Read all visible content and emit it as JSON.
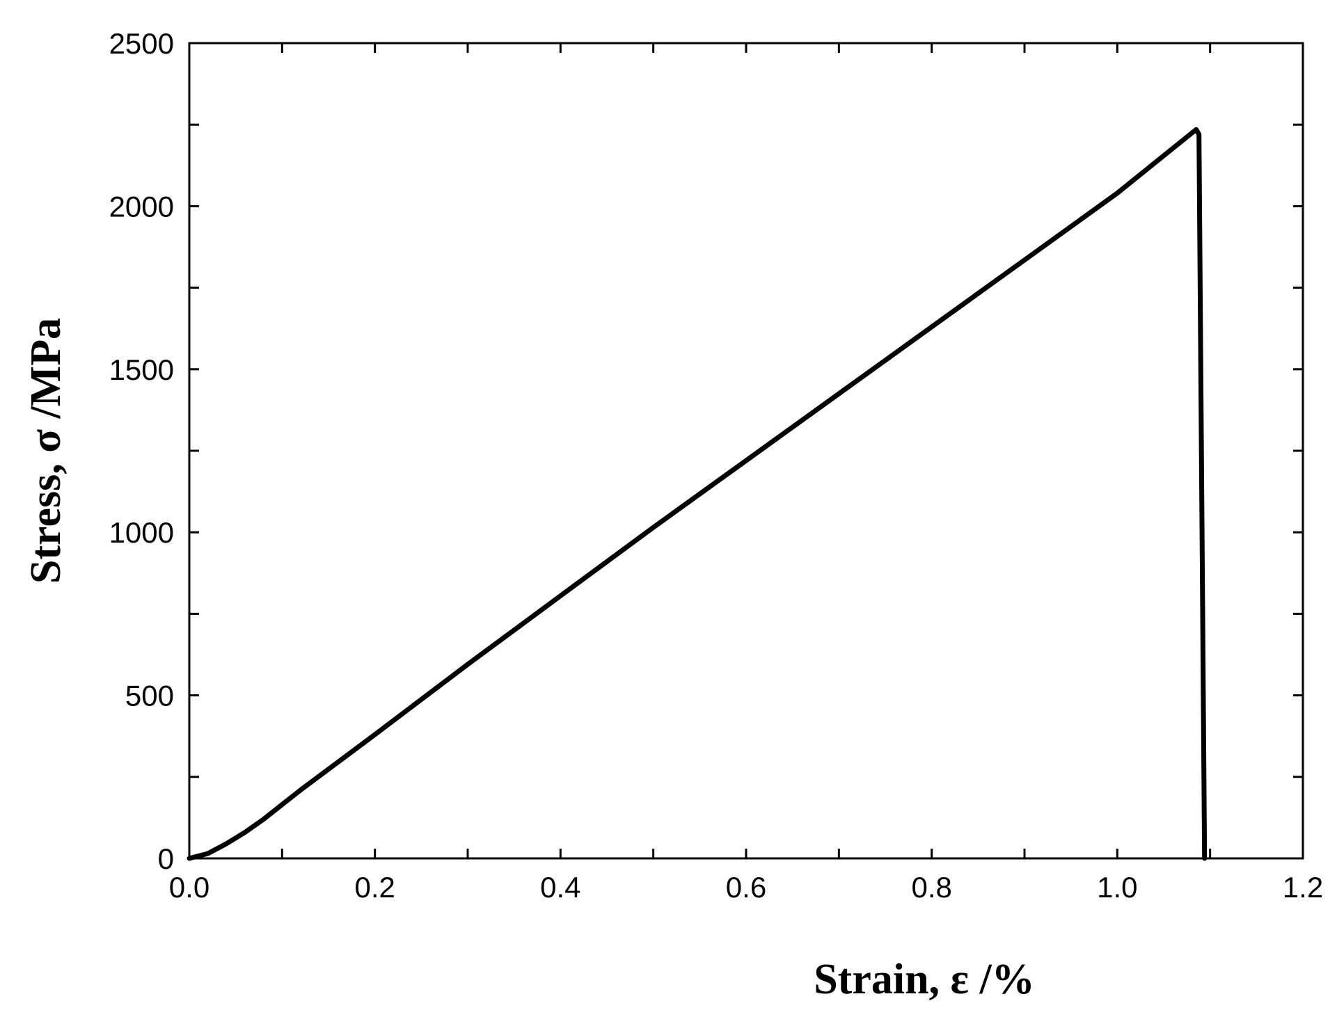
{
  "chart_data": {
    "type": "line",
    "title": "",
    "xlabel": "Strain, ε /%",
    "ylabel": "Stress, σ /MPa",
    "xlim": [
      0.0,
      1.2
    ],
    "ylim": [
      0,
      2500
    ],
    "x_ticks": [
      "0.0",
      "0.2",
      "0.4",
      "0.6",
      "0.8",
      "1.0",
      "1.2"
    ],
    "y_ticks": [
      "0",
      "500",
      "1000",
      "1500",
      "2000",
      "2500"
    ],
    "grid": false,
    "legend": "none",
    "line_color": "#000000",
    "series": [
      {
        "x": [
          0.0,
          0.02,
          0.04,
          0.06,
          0.08,
          0.1,
          0.12,
          0.2,
          0.3,
          0.4,
          0.5,
          0.6,
          0.7,
          0.8,
          0.9,
          1.0,
          1.085,
          1.088,
          1.094
        ],
        "y": [
          0,
          15,
          45,
          80,
          120,
          165,
          210,
          380,
          595,
          805,
          1015,
          1220,
          1425,
          1630,
          1835,
          2040,
          2235,
          2220,
          0
        ]
      }
    ]
  }
}
